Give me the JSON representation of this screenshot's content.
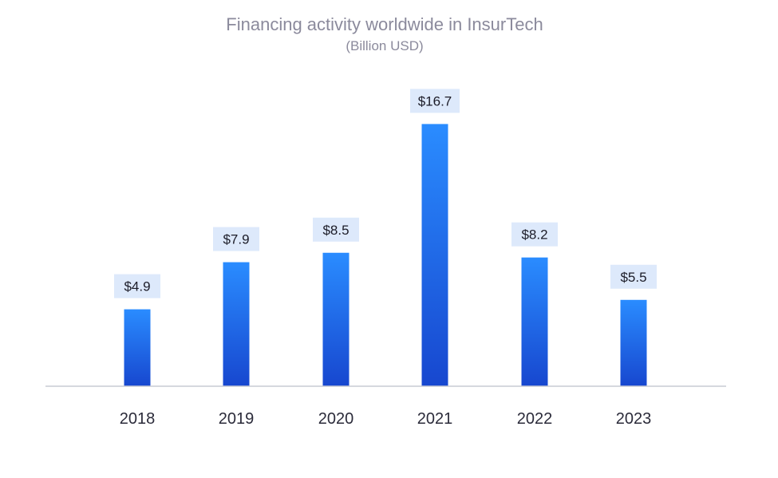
{
  "chart_data": {
    "type": "bar",
    "title": "Financing activity worldwide in InsurTech",
    "subtitle": "(Billion  USD)",
    "categories": [
      "2018",
      "2019",
      "2020",
      "2021",
      "2022",
      "2023"
    ],
    "values": [
      4.9,
      7.9,
      8.5,
      16.7,
      8.2,
      5.5
    ],
    "data_labels": [
      "$4.9",
      "$7.9",
      "$8.5",
      "$16.7",
      "$8.2",
      "$5.5"
    ],
    "xlabel": "",
    "ylabel": "",
    "ylim": [
      0,
      18.5
    ],
    "grid": false,
    "legend": "none",
    "colors": {
      "bar_top": "#2a8cff",
      "bar_bottom": "#1747cf",
      "label_bg": "#dde9fb",
      "axis": "#c9cbd3"
    }
  }
}
